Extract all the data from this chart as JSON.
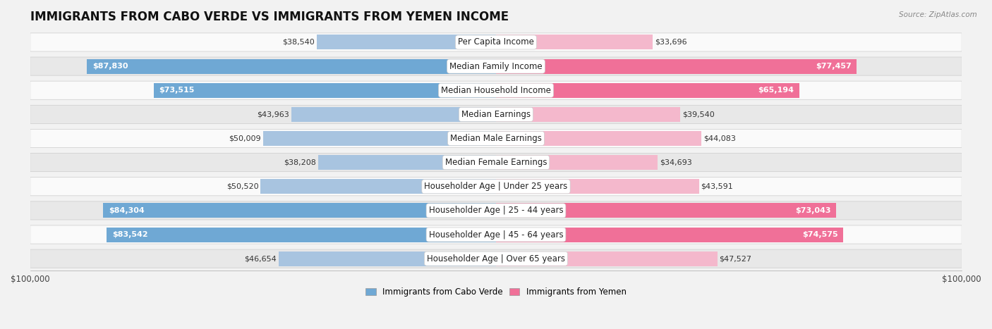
{
  "title": "IMMIGRANTS FROM CABO VERDE VS IMMIGRANTS FROM YEMEN INCOME",
  "source": "Source: ZipAtlas.com",
  "categories": [
    "Per Capita Income",
    "Median Family Income",
    "Median Household Income",
    "Median Earnings",
    "Median Male Earnings",
    "Median Female Earnings",
    "Householder Age | Under 25 years",
    "Householder Age | 25 - 44 years",
    "Householder Age | 45 - 64 years",
    "Householder Age | Over 65 years"
  ],
  "cabo_verde": [
    38540,
    87830,
    73515,
    43963,
    50009,
    38208,
    50520,
    84304,
    83542,
    46654
  ],
  "yemen": [
    33696,
    77457,
    65194,
    39540,
    44083,
    34693,
    43591,
    73043,
    74575,
    47527
  ],
  "cabo_verde_color_light": "#a8c4e0",
  "cabo_verde_color_dark": "#6fa8d4",
  "yemen_color_light": "#f4b8cc",
  "yemen_color_dark": "#f07098",
  "label_color_dark_threshold": 60000,
  "xlim": 100000,
  "legend_cabo_verde": "Immigrants from Cabo Verde",
  "legend_yemen": "Immigrants from Yemen",
  "background_color": "#f2f2f2",
  "row_bg_light": "#fafafa",
  "row_bg_dark": "#e8e8e8",
  "title_fontsize": 12,
  "label_fontsize": 8.5,
  "value_fontsize": 8,
  "axis_label_fontsize": 8.5
}
